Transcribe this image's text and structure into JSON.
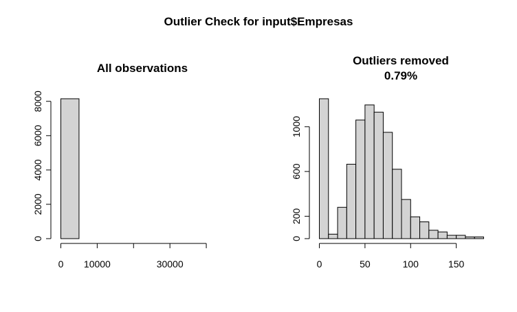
{
  "figure": {
    "title": "Outlier Check for input$Empresas"
  },
  "chart_data": [
    {
      "type": "bar",
      "title": "All observations",
      "xlabel": "",
      "ylabel": "",
      "bin_edges": [
        0,
        5000,
        10000,
        15000,
        20000,
        25000,
        30000,
        35000,
        40000,
        45000
      ],
      "values": [
        8150,
        0,
        0,
        0,
        0,
        0,
        0,
        0,
        0
      ],
      "xlim": [
        0,
        45000
      ],
      "ylim": [
        0,
        8150
      ],
      "x_ticks": [
        0,
        10000,
        20000,
        30000,
        40000
      ],
      "x_tick_labels": [
        "0",
        "10000",
        "",
        "30000",
        ""
      ],
      "y_ticks": [
        0,
        2000,
        4000,
        6000,
        8000
      ],
      "y_tick_labels": [
        "0",
        "2000",
        "4000",
        "6000",
        "8000"
      ]
    },
    {
      "type": "bar",
      "title": "Outliers removed",
      "subtitle": "0.79%",
      "xlabel": "",
      "ylabel": "",
      "bin_edges": [
        0,
        10,
        20,
        30,
        40,
        50,
        60,
        70,
        80,
        90,
        100,
        110,
        120,
        130,
        140,
        150,
        160,
        170,
        180
      ],
      "values": [
        1250,
        40,
        280,
        665,
        1060,
        1195,
        1130,
        950,
        620,
        350,
        195,
        150,
        75,
        60,
        30,
        30,
        15,
        15
      ],
      "xlim": [
        0,
        180
      ],
      "ylim": [
        0,
        1250
      ],
      "x_ticks": [
        0,
        50,
        100,
        150
      ],
      "x_tick_labels": [
        "0",
        "50",
        "100",
        "150"
      ],
      "y_ticks": [
        0,
        200,
        600,
        1000
      ],
      "y_tick_labels": [
        "0",
        "200",
        "600",
        "1000"
      ]
    }
  ]
}
